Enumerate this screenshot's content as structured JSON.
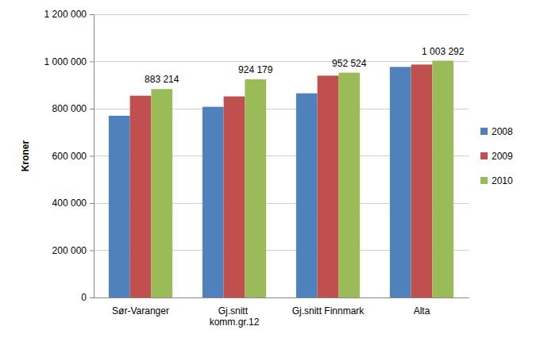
{
  "chart_data": {
    "type": "bar",
    "y_label": "Kroner",
    "categories": [
      "Sør-Varanger",
      "Gj.snitt komm.gr.12",
      "Gj.snitt Finnmark",
      "Alta"
    ],
    "series": [
      {
        "name": "2008",
        "color": "#4f81bd",
        "values": [
          770000,
          808000,
          865000,
          977000
        ]
      },
      {
        "name": "2009",
        "color": "#c0504d",
        "values": [
          855000,
          852000,
          940000,
          987000
        ]
      },
      {
        "name": "2010",
        "color": "#9bbb59",
        "values": [
          883214,
          924179,
          952524,
          1003292
        ],
        "data_labels": true,
        "value_labels": [
          "883 214",
          "924 179",
          "952 524",
          "1 003 292"
        ]
      }
    ],
    "ylim": [
      0,
      1200000
    ],
    "yticks": [
      0,
      {
        "value": 200000,
        "label": "200 000"
      },
      {
        "value": 400000,
        "label": "400 000"
      },
      {
        "value": 600000,
        "label": "600 000"
      },
      {
        "value": 800000,
        "label": "800 000"
      },
      {
        "value": 1000000,
        "label": "1 000 000"
      },
      {
        "value": 1200000,
        "label": "1 200 000"
      }
    ],
    "grid": true,
    "legend": "right"
  }
}
